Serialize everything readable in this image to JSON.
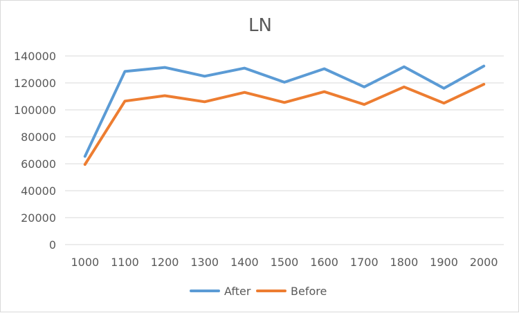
{
  "chart_data": {
    "type": "line",
    "title": "LN",
    "xlabel": "",
    "ylabel": "",
    "x": [
      1000,
      1100,
      1200,
      1300,
      1400,
      1500,
      1600,
      1700,
      1800,
      1900,
      2000
    ],
    "x_tick_labels": [
      "1000",
      "1100",
      "1200",
      "1300",
      "1400",
      "1500",
      "1600",
      "1700",
      "1800",
      "1900",
      "2000"
    ],
    "y_ticks": [
      0,
      20000,
      40000,
      60000,
      80000,
      100000,
      120000,
      140000
    ],
    "y_tick_labels": [
      "0",
      "20000",
      "40000",
      "60000",
      "80000",
      "100000",
      "120000",
      "140000"
    ],
    "ylim": [
      0,
      140000
    ],
    "grid": true,
    "legend_position": "bottom",
    "series": [
      {
        "name": "After",
        "color": "#5b9bd5",
        "values": [
          65500,
          128500,
          131500,
          125000,
          131000,
          120500,
          130500,
          117000,
          132000,
          116000,
          132500
        ]
      },
      {
        "name": "Before",
        "color": "#ed7d31",
        "values": [
          59500,
          106500,
          110500,
          106000,
          113000,
          105500,
          113500,
          104000,
          117000,
          105000,
          119000
        ]
      }
    ]
  }
}
